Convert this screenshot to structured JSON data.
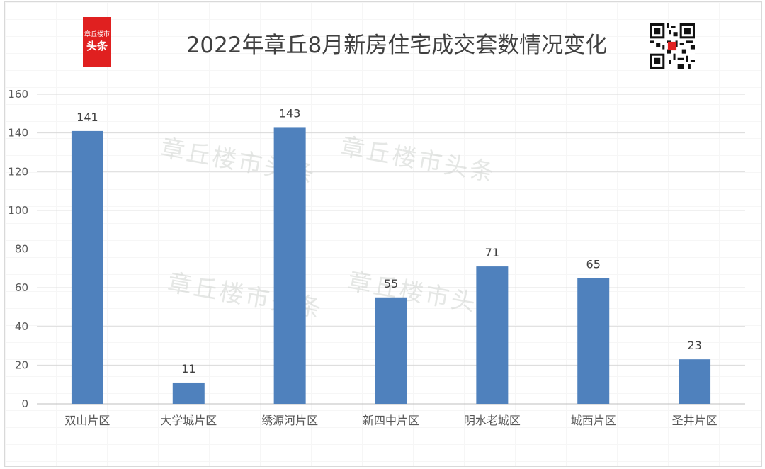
{
  "chart_data": {
    "type": "bar",
    "title": "2022年章丘8月新房住宅成交套数情况变化",
    "categories": [
      "双山片区",
      "大学城片区",
      "绣源河片区",
      "新四中片区",
      "明水老城区",
      "城西片区",
      "圣井片区"
    ],
    "values": [
      141,
      11,
      143,
      55,
      71,
      65,
      23
    ],
    "ylim": [
      0,
      160
    ],
    "yticks": [
      "0",
      "20",
      "40",
      "60",
      "80",
      "100",
      "120",
      "140",
      "160"
    ],
    "grid": true,
    "bar_color": "#4f81bd"
  },
  "logo": {
    "top_text": "章丘楼市",
    "bottom_text": "头条"
  },
  "watermark_text": "章丘楼市头条",
  "qr_icon": "qr-code-icon"
}
